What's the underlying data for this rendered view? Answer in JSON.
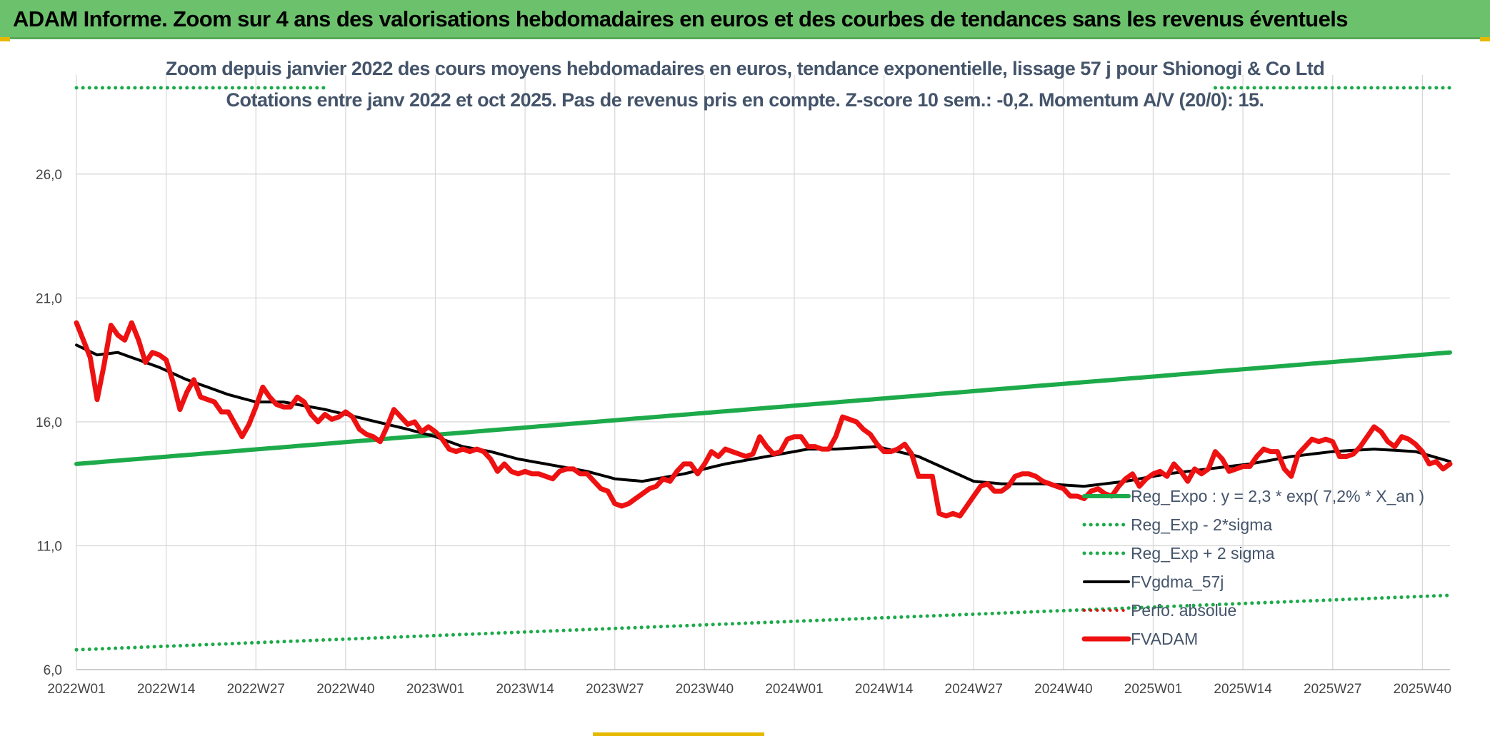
{
  "header": {
    "title": "ADAM Informe. Zoom sur 4 ans des valorisations hebdomadaires en euros et des courbes de tendances sans les revenus éventuels"
  },
  "chart_data": {
    "type": "line",
    "title": "Zoom depuis janvier 2022 des cours moyens hebdomadaires en euros, tendance exponentielle, lissage 57 j pour Shionogi & Co Ltd",
    "subtitle": "Cotations entre janv 2022 et oct 2025. Pas de revenus pris en compte. Z-score 10 sem.: -0,2. Momentum A/V (20/0): 15.",
    "xlabel": "",
    "ylabel": "",
    "ylim": [
      6.0,
      30.0
    ],
    "yticks": [
      "6,0",
      "11,0",
      "16,0",
      "21,0",
      "26,0"
    ],
    "yticks_values": [
      6,
      11,
      16,
      21,
      26
    ],
    "x_labels": [
      "2022W01",
      "2022W14",
      "2022W27",
      "2022W40",
      "2023W01",
      "2023W14",
      "2023W27",
      "2023W40",
      "2024W01",
      "2024W14",
      "2024W27",
      "2024W40",
      "2025W01",
      "2025W14",
      "2025W27",
      "2025W40"
    ],
    "x_label_index": [
      0,
      13,
      26,
      39,
      52,
      65,
      78,
      91,
      104,
      117,
      130,
      143,
      156,
      169,
      182,
      195
    ],
    "n_points": 200,
    "grid": true,
    "legend_position": "bottom-right",
    "series": [
      {
        "name": "Reg_Expo : y = 2,3 * exp( 7,2% *  X_an )",
        "color": "#1daa4a",
        "style": "solid",
        "width": 6,
        "keys": [
          [
            0,
            14.3
          ],
          [
            199,
            18.8
          ]
        ]
      },
      {
        "name": "Reg_Exp - 2*sigma",
        "color": "#1daa4a",
        "style": "dotted",
        "width": 5,
        "keys": [
          [
            0,
            6.8
          ],
          [
            199,
            9.0
          ]
        ]
      },
      {
        "name": "Reg_Exp + 2 sigma",
        "color": "#1daa4a",
        "style": "dotted",
        "width": 5,
        "keys": [
          [
            0,
            29.5
          ],
          [
            199,
            30.0
          ]
        ]
      },
      {
        "name": "FVgdma_57j",
        "color": "#000000",
        "style": "solid",
        "width": 4,
        "keys": [
          [
            0,
            19.1
          ],
          [
            3,
            18.7
          ],
          [
            6,
            18.8
          ],
          [
            12,
            18.2
          ],
          [
            16,
            17.7
          ],
          [
            22,
            17.1
          ],
          [
            26,
            16.8
          ],
          [
            30,
            16.8
          ],
          [
            36,
            16.5
          ],
          [
            42,
            16.1
          ],
          [
            48,
            15.7
          ],
          [
            52,
            15.4
          ],
          [
            56,
            15.0
          ],
          [
            60,
            14.8
          ],
          [
            64,
            14.5
          ],
          [
            70,
            14.2
          ],
          [
            74,
            14.0
          ],
          [
            78,
            13.7
          ],
          [
            82,
            13.6
          ],
          [
            88,
            13.9
          ],
          [
            94,
            14.3
          ],
          [
            100,
            14.6
          ],
          [
            106,
            14.9
          ],
          [
            110,
            14.9
          ],
          [
            116,
            15.0
          ],
          [
            122,
            14.6
          ],
          [
            126,
            14.1
          ],
          [
            130,
            13.6
          ],
          [
            134,
            13.5
          ],
          [
            140,
            13.5
          ],
          [
            146,
            13.4
          ],
          [
            152,
            13.6
          ],
          [
            158,
            13.9
          ],
          [
            164,
            14.1
          ],
          [
            170,
            14.3
          ],
          [
            176,
            14.6
          ],
          [
            182,
            14.8
          ],
          [
            188,
            14.9
          ],
          [
            194,
            14.8
          ],
          [
            199,
            14.4
          ]
        ]
      },
      {
        "name": "Perfo. absolue",
        "color": "#e01010",
        "style": "dotted",
        "width": 4,
        "keys": []
      },
      {
        "name": "FVADAM",
        "color": "#ee1111",
        "style": "solid",
        "width": 7,
        "keys": [
          [
            0,
            20.0
          ],
          [
            1,
            19.3
          ],
          [
            2,
            18.6
          ],
          [
            3,
            16.9
          ],
          [
            4,
            18.3
          ],
          [
            5,
            19.9
          ],
          [
            6,
            19.5
          ],
          [
            7,
            19.3
          ],
          [
            8,
            20.0
          ],
          [
            9,
            19.3
          ],
          [
            10,
            18.4
          ],
          [
            11,
            18.8
          ],
          [
            12,
            18.7
          ],
          [
            13,
            18.5
          ],
          [
            14,
            17.6
          ],
          [
            15,
            16.5
          ],
          [
            16,
            17.2
          ],
          [
            17,
            17.7
          ],
          [
            18,
            17.0
          ],
          [
            19,
            16.9
          ],
          [
            20,
            16.8
          ],
          [
            21,
            16.4
          ],
          [
            22,
            16.4
          ],
          [
            23,
            15.9
          ],
          [
            24,
            15.4
          ],
          [
            25,
            15.9
          ],
          [
            26,
            16.6
          ],
          [
            27,
            17.4
          ],
          [
            28,
            17.0
          ],
          [
            29,
            16.7
          ],
          [
            30,
            16.6
          ],
          [
            31,
            16.6
          ],
          [
            32,
            17.0
          ],
          [
            33,
            16.8
          ],
          [
            34,
            16.3
          ],
          [
            35,
            16.0
          ],
          [
            36,
            16.3
          ],
          [
            37,
            16.1
          ],
          [
            38,
            16.2
          ],
          [
            39,
            16.4
          ],
          [
            40,
            16.2
          ],
          [
            41,
            15.7
          ],
          [
            42,
            15.5
          ],
          [
            43,
            15.4
          ],
          [
            44,
            15.2
          ],
          [
            45,
            15.8
          ],
          [
            46,
            16.5
          ],
          [
            47,
            16.2
          ],
          [
            48,
            15.9
          ],
          [
            49,
            16.0
          ],
          [
            50,
            15.6
          ],
          [
            51,
            15.8
          ],
          [
            52,
            15.6
          ],
          [
            53,
            15.3
          ],
          [
            54,
            14.9
          ],
          [
            55,
            14.8
          ],
          [
            56,
            14.9
          ],
          [
            57,
            14.8
          ],
          [
            58,
            14.9
          ],
          [
            59,
            14.8
          ],
          [
            60,
            14.5
          ],
          [
            61,
            14.0
          ],
          [
            62,
            14.3
          ],
          [
            63,
            14.0
          ],
          [
            64,
            13.9
          ],
          [
            65,
            14.0
          ],
          [
            66,
            13.9
          ],
          [
            67,
            13.9
          ],
          [
            68,
            13.8
          ],
          [
            69,
            13.7
          ],
          [
            70,
            14.0
          ],
          [
            71,
            14.1
          ],
          [
            72,
            14.1
          ],
          [
            73,
            13.9
          ],
          [
            74,
            13.9
          ],
          [
            75,
            13.6
          ],
          [
            76,
            13.3
          ],
          [
            77,
            13.2
          ],
          [
            78,
            12.7
          ],
          [
            79,
            12.6
          ],
          [
            80,
            12.7
          ],
          [
            81,
            12.9
          ],
          [
            82,
            13.1
          ],
          [
            83,
            13.3
          ],
          [
            84,
            13.4
          ],
          [
            85,
            13.7
          ],
          [
            86,
            13.6
          ],
          [
            87,
            14.0
          ],
          [
            88,
            14.3
          ],
          [
            89,
            14.3
          ],
          [
            90,
            13.9
          ],
          [
            91,
            14.3
          ],
          [
            92,
            14.8
          ],
          [
            93,
            14.6
          ],
          [
            94,
            14.9
          ],
          [
            95,
            14.8
          ],
          [
            96,
            14.7
          ],
          [
            97,
            14.6
          ],
          [
            98,
            14.7
          ],
          [
            99,
            15.4
          ],
          [
            100,
            15.0
          ],
          [
            101,
            14.7
          ],
          [
            102,
            14.8
          ],
          [
            103,
            15.3
          ],
          [
            104,
            15.4
          ],
          [
            105,
            15.4
          ],
          [
            106,
            15.0
          ],
          [
            107,
            15.0
          ],
          [
            108,
            14.9
          ],
          [
            109,
            14.9
          ],
          [
            110,
            15.4
          ],
          [
            111,
            16.2
          ],
          [
            112,
            16.1
          ],
          [
            113,
            16.0
          ],
          [
            114,
            15.7
          ],
          [
            115,
            15.5
          ],
          [
            116,
            15.1
          ],
          [
            117,
            14.8
          ],
          [
            118,
            14.8
          ],
          [
            119,
            14.9
          ],
          [
            120,
            15.1
          ],
          [
            121,
            14.7
          ],
          [
            122,
            13.8
          ],
          [
            123,
            13.8
          ],
          [
            124,
            13.8
          ],
          [
            125,
            12.3
          ],
          [
            126,
            12.2
          ],
          [
            127,
            12.3
          ],
          [
            128,
            12.2
          ],
          [
            129,
            12.6
          ],
          [
            130,
            13.0
          ],
          [
            131,
            13.4
          ],
          [
            132,
            13.5
          ],
          [
            133,
            13.2
          ],
          [
            134,
            13.2
          ],
          [
            135,
            13.4
          ],
          [
            136,
            13.8
          ],
          [
            137,
            13.9
          ],
          [
            138,
            13.9
          ],
          [
            139,
            13.8
          ],
          [
            140,
            13.6
          ],
          [
            141,
            13.5
          ],
          [
            142,
            13.4
          ],
          [
            143,
            13.3
          ],
          [
            144,
            13.0
          ],
          [
            145,
            13.0
          ],
          [
            146,
            12.9
          ],
          [
            147,
            13.2
          ],
          [
            148,
            13.3
          ],
          [
            149,
            13.1
          ],
          [
            150,
            13.0
          ],
          [
            151,
            13.4
          ],
          [
            152,
            13.7
          ],
          [
            153,
            13.9
          ],
          [
            154,
            13.4
          ],
          [
            155,
            13.7
          ],
          [
            156,
            13.9
          ],
          [
            157,
            14.0
          ],
          [
            158,
            13.8
          ],
          [
            159,
            14.3
          ],
          [
            160,
            14.0
          ],
          [
            161,
            13.6
          ],
          [
            162,
            14.1
          ],
          [
            163,
            13.9
          ],
          [
            164,
            14.1
          ],
          [
            165,
            14.8
          ],
          [
            166,
            14.5
          ],
          [
            167,
            14.0
          ],
          [
            168,
            14.1
          ],
          [
            169,
            14.2
          ],
          [
            170,
            14.2
          ],
          [
            171,
            14.6
          ],
          [
            172,
            14.9
          ],
          [
            173,
            14.8
          ],
          [
            174,
            14.8
          ],
          [
            175,
            14.1
          ],
          [
            176,
            13.8
          ],
          [
            177,
            14.7
          ],
          [
            178,
            15.0
          ],
          [
            179,
            15.3
          ],
          [
            180,
            15.2
          ],
          [
            181,
            15.3
          ],
          [
            182,
            15.2
          ],
          [
            183,
            14.6
          ],
          [
            184,
            14.6
          ],
          [
            185,
            14.7
          ],
          [
            186,
            15.0
          ],
          [
            187,
            15.4
          ],
          [
            188,
            15.8
          ],
          [
            189,
            15.6
          ],
          [
            190,
            15.2
          ],
          [
            191,
            15.0
          ],
          [
            192,
            15.4
          ],
          [
            193,
            15.3
          ],
          [
            194,
            15.1
          ],
          [
            195,
            14.8
          ],
          [
            196,
            14.3
          ],
          [
            197,
            14.4
          ],
          [
            198,
            14.1
          ],
          [
            199,
            14.3
          ]
        ]
      }
    ]
  }
}
